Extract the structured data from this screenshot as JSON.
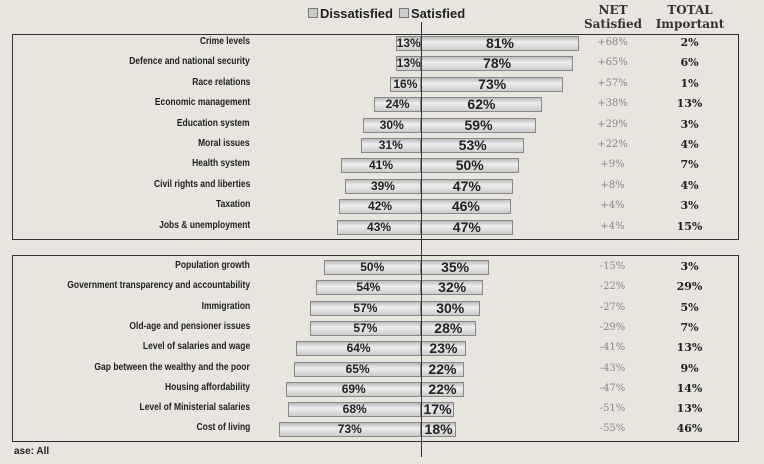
{
  "chart_data": {
    "type": "bar",
    "orientation": "diverging-horizontal",
    "legend": [
      "Dissatisfied",
      "Satisfied"
    ],
    "legend_placement": "top",
    "column_headers": {
      "net": "NET Satisfied",
      "total": "TOTAL Important"
    },
    "groups": [
      {
        "categories": [
          "Crime levels",
          "Defence and national security",
          "Race relations",
          "Economic management",
          "Education system",
          "Moral issues",
          "Health system",
          "Civil rights and liberties",
          "Taxation",
          "Jobs & unemployment"
        ],
        "dissatisfied": [
          13,
          13,
          16,
          24,
          30,
          31,
          41,
          39,
          42,
          43
        ],
        "satisfied": [
          81,
          78,
          73,
          62,
          59,
          53,
          50,
          47,
          46,
          47
        ],
        "net": [
          "+68%",
          "+65%",
          "+57%",
          "+38%",
          "+29%",
          "+22%",
          "+9%",
          "+8%",
          "+4%",
          "+4%"
        ],
        "total_important": [
          "2%",
          "6%",
          "1%",
          "13%",
          "3%",
          "4%",
          "7%",
          "4%",
          "3%",
          "15%"
        ]
      },
      {
        "categories": [
          "Population growth",
          "Government transparency and accountability",
          "Immigration",
          "Old-age and pensioner issues",
          "Level of salaries and wage",
          "Gap between the wealthy and the poor",
          "Housing affordability",
          "Level of Ministerial salaries",
          "Cost of living"
        ],
        "dissatisfied": [
          50,
          54,
          57,
          57,
          64,
          65,
          69,
          68,
          73
        ],
        "satisfied": [
          35,
          32,
          30,
          28,
          23,
          22,
          22,
          17,
          18
        ],
        "net": [
          "-15%",
          "-22%",
          "-27%",
          "-29%",
          "-41%",
          "-43%",
          "-47%",
          "-51%",
          "-55%"
        ],
        "total_important": [
          "3%",
          "29%",
          "5%",
          "7%",
          "13%",
          "9%",
          "14%",
          "13%",
          "46%"
        ]
      }
    ],
    "footnote": "ase: All"
  }
}
